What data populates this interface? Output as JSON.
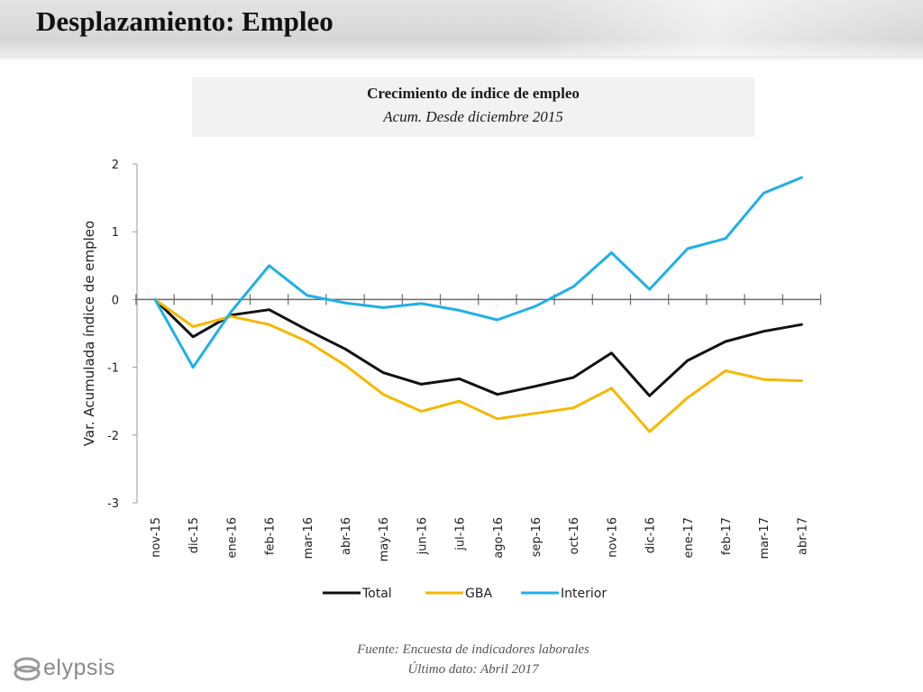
{
  "page": {
    "title": "Desplazamiento: Empleo",
    "footer_source": "Fuente: Encuesta de indicadores laborales",
    "footer_last": "Último dato: Abril 2017",
    "logo_text": "elypsis"
  },
  "chart_data": {
    "type": "line",
    "title": "Crecimiento de índice de empleo",
    "subtitle": "Acum. Desde diciembre 2015",
    "ylabel": "Var. Acumulada índice de empleo",
    "xlabel": "",
    "ylim": [
      -3,
      2
    ],
    "yticks": [
      "2",
      "1",
      "0",
      "-1",
      "-2",
      "-3"
    ],
    "categories": [
      "nov-15",
      "dic-15",
      "ene-16",
      "feb-16",
      "mar-16",
      "abr-16",
      "may-16",
      "jun-16",
      "jul-16",
      "ago-16",
      "sep-16",
      "oct-16",
      "nov-16",
      "dic-16",
      "ene-17",
      "feb-17",
      "mar-17",
      "abr-17"
    ],
    "series": [
      {
        "name": "Total",
        "color": "#111111",
        "values": [
          0,
          -0.55,
          -0.23,
          -0.15,
          -0.45,
          -0.73,
          -1.08,
          -1.25,
          -1.17,
          -1.4,
          -1.28,
          -1.15,
          -0.79,
          -1.42,
          -0.9,
          -0.62,
          -0.47,
          -0.37
        ]
      },
      {
        "name": "GBA",
        "color": "#f5b800",
        "values": [
          0,
          -0.4,
          -0.25,
          -0.37,
          -0.62,
          -0.97,
          -1.4,
          -1.65,
          -1.5,
          -1.76,
          -1.68,
          -1.6,
          -1.31,
          -1.95,
          -1.45,
          -1.05,
          -1.18,
          -1.2
        ]
      },
      {
        "name": "Interior",
        "color": "#1fb0e6",
        "values": [
          0,
          -1.0,
          -0.18,
          0.5,
          0.06,
          -0.05,
          -0.12,
          -0.06,
          -0.16,
          -0.3,
          -0.1,
          0.19,
          0.69,
          0.15,
          0.75,
          0.9,
          1.57,
          1.8
        ]
      }
    ],
    "legend_position": "bottom",
    "grid": false
  }
}
